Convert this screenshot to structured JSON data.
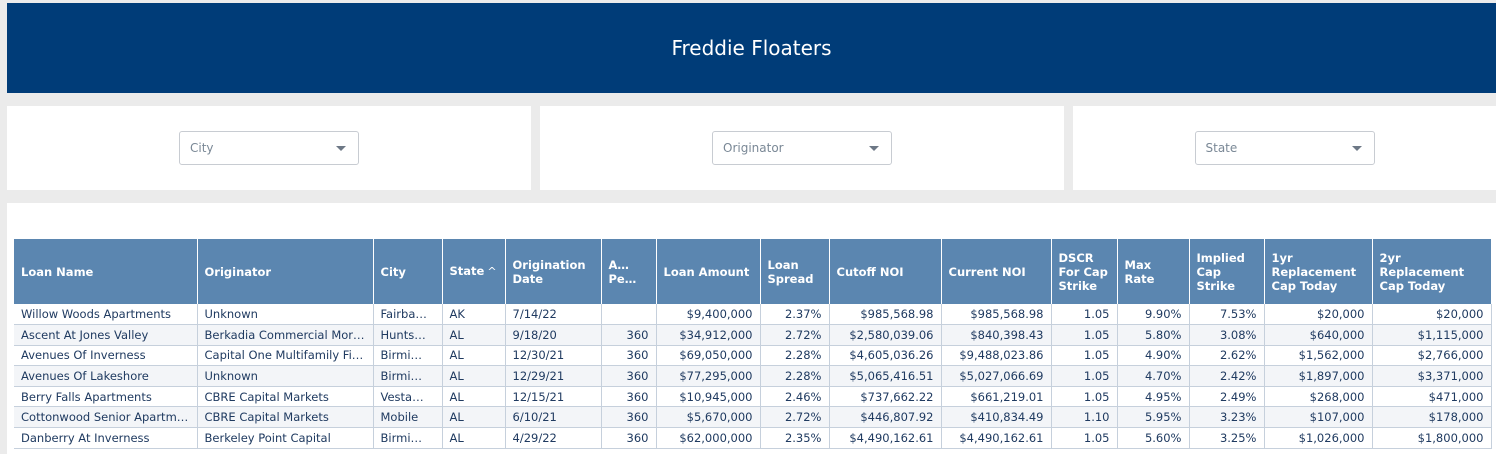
{
  "header": {
    "title": "Freddie Floaters"
  },
  "filters": [
    {
      "label": "City"
    },
    {
      "label": "Originator"
    },
    {
      "label": "State"
    }
  ],
  "table": {
    "columns": [
      {
        "label": "Loan Name"
      },
      {
        "label": "Originator"
      },
      {
        "label": "City"
      },
      {
        "label": "State",
        "sort": "^"
      },
      {
        "label": "Origination Date"
      },
      {
        "label": "A… Pe…"
      },
      {
        "label": "Loan Amount"
      },
      {
        "label": "Loan Spread"
      },
      {
        "label": "Cutoff NOI"
      },
      {
        "label": "Current NOI"
      },
      {
        "label": "DSCR For Cap Strike"
      },
      {
        "label": "Max Rate"
      },
      {
        "label": "Implied Cap Strike"
      },
      {
        "label": "1yr Replacement Cap Today"
      },
      {
        "label": "2yr Replacement Cap Today"
      }
    ],
    "rows": [
      [
        "Willow Woods Apartments",
        "Unknown",
        "Fairba…",
        "AK",
        "7/14/22",
        "",
        "$9,400,000",
        "2.37%",
        "$985,568.98",
        "$985,568.98",
        "1.05",
        "9.90%",
        "7.53%",
        "$20,000",
        "$20,000"
      ],
      [
        "Ascent At Jones Valley",
        "Berkadia Commercial Mort…",
        "Hunts…",
        "AL",
        "9/18/20",
        "360",
        "$34,912,000",
        "2.72%",
        "$2,580,039.06",
        "$840,398.43",
        "1.05",
        "5.80%",
        "3.08%",
        "$640,000",
        "$1,115,000"
      ],
      [
        "Avenues Of Inverness",
        "Capital One Multifamily Fin…",
        "Birmi…",
        "AL",
        "12/30/21",
        "360",
        "$69,050,000",
        "2.28%",
        "$4,605,036.26",
        "$9,488,023.86",
        "1.05",
        "4.90%",
        "2.62%",
        "$1,562,000",
        "$2,766,000"
      ],
      [
        "Avenues Of Lakeshore",
        "Unknown",
        "Birmi…",
        "AL",
        "12/29/21",
        "360",
        "$77,295,000",
        "2.28%",
        "$5,065,416.51",
        "$5,027,066.69",
        "1.05",
        "4.70%",
        "2.42%",
        "$1,897,000",
        "$3,371,000"
      ],
      [
        "Berry Falls Apartments",
        "CBRE Capital Markets",
        "Vesta…",
        "AL",
        "12/15/21",
        "360",
        "$10,945,000",
        "2.46%",
        "$737,662.22",
        "$661,219.01",
        "1.05",
        "4.95%",
        "2.49%",
        "$268,000",
        "$471,000"
      ],
      [
        "Cottonwood Senior Apartme…",
        "CBRE Capital Markets",
        "Mobile",
        "AL",
        "6/10/21",
        "360",
        "$5,670,000",
        "2.72%",
        "$446,807.92",
        "$410,834.49",
        "1.10",
        "5.95%",
        "3.23%",
        "$107,000",
        "$178,000"
      ],
      [
        "Danberry At Inverness",
        "Berkeley Point Capital",
        "Birmi…",
        "AL",
        "4/29/22",
        "360",
        "$62,000,000",
        "2.35%",
        "$4,490,162.61",
        "$4,490,162.61",
        "1.05",
        "5.60%",
        "3.25%",
        "$1,026,000",
        "$1,800,000"
      ]
    ]
  }
}
